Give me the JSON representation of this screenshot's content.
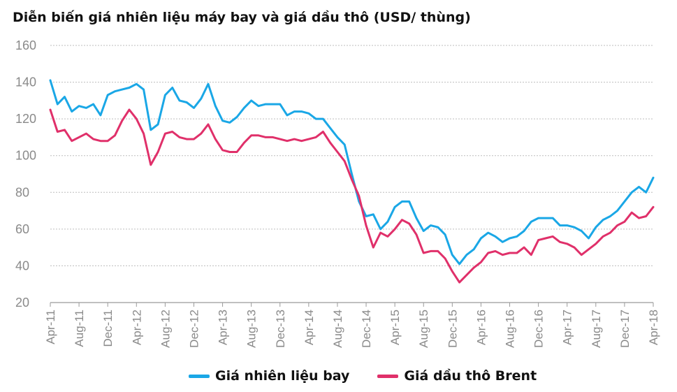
{
  "chart_data": {
    "type": "line",
    "title": "Diễn biến giá nhiên liệu máy bay và giá dầu thô (USD/ thùng)",
    "xlabel": "",
    "ylabel": "",
    "ylim": [
      20,
      160
    ],
    "yticks": [
      "20",
      "40",
      "60",
      "80",
      "100",
      "120",
      "140",
      "160"
    ],
    "xticks": [
      "Apr-11",
      "Aug-11",
      "Dec-11",
      "Apr-12",
      "Aug-12",
      "Dec-12",
      "Apr-13",
      "Aug-13",
      "Dec-13",
      "Apr-14",
      "Aug-14",
      "Dec-14",
      "Apr-15",
      "Aug-15",
      "Dec-15",
      "Apr-16",
      "Aug-16",
      "Dec-16",
      "Apr-17",
      "Aug-17",
      "Dec-17",
      "Apr-18"
    ],
    "grid": true,
    "legend_position": "bottom",
    "series": [
      {
        "name": "Giá nhiên liệu bay",
        "color": "#1aa7e6",
        "x": [
          "Apr-11",
          "May-11",
          "Jun-11",
          "Jul-11",
          "Aug-11",
          "Sep-11",
          "Oct-11",
          "Nov-11",
          "Dec-11",
          "Jan-12",
          "Feb-12",
          "Mar-12",
          "Apr-12",
          "May-12",
          "Jun-12",
          "Jul-12",
          "Aug-12",
          "Sep-12",
          "Oct-12",
          "Nov-12",
          "Dec-12",
          "Jan-13",
          "Feb-13",
          "Mar-13",
          "Apr-13",
          "May-13",
          "Jun-13",
          "Jul-13",
          "Aug-13",
          "Sep-13",
          "Oct-13",
          "Nov-13",
          "Dec-13",
          "Jan-14",
          "Feb-14",
          "Mar-14",
          "Apr-14",
          "May-14",
          "Jun-14",
          "Jul-14",
          "Aug-14",
          "Sep-14",
          "Oct-14",
          "Nov-14",
          "Dec-14",
          "Jan-15",
          "Feb-15",
          "Mar-15",
          "Apr-15",
          "May-15",
          "Jun-15",
          "Jul-15",
          "Aug-15",
          "Sep-15",
          "Oct-15",
          "Nov-15",
          "Dec-15",
          "Jan-16",
          "Feb-16",
          "Mar-16",
          "Apr-16",
          "May-16",
          "Jun-16",
          "Jul-16",
          "Aug-16",
          "Sep-16",
          "Oct-16",
          "Nov-16",
          "Dec-16",
          "Jan-17",
          "Feb-17",
          "Mar-17",
          "Apr-17",
          "May-17",
          "Jun-17",
          "Jul-17",
          "Aug-17",
          "Sep-17",
          "Oct-17",
          "Nov-17",
          "Dec-17",
          "Jan-18",
          "Feb-18",
          "Mar-18",
          "Apr-18"
        ],
        "values": [
          141,
          128,
          132,
          124,
          127,
          126,
          128,
          122,
          133,
          135,
          136,
          137,
          139,
          136,
          114,
          117,
          133,
          137,
          130,
          129,
          126,
          131,
          139,
          127,
          119,
          118,
          121,
          126,
          130,
          127,
          128,
          128,
          128,
          122,
          124,
          124,
          123,
          120,
          120,
          115,
          110,
          106,
          90,
          75,
          67,
          68,
          60,
          64,
          72,
          75,
          75,
          66,
          59,
          62,
          61,
          57,
          46,
          41,
          46,
          49,
          55,
          58,
          56,
          53,
          55,
          56,
          59,
          64,
          66,
          66,
          66,
          62,
          62,
          61,
          59,
          55,
          61,
          65,
          67,
          70,
          75,
          80,
          83,
          80,
          88
        ]
      },
      {
        "name": "Giá dầu thô Brent",
        "color": "#e0306a",
        "x": [
          "Apr-11",
          "May-11",
          "Jun-11",
          "Jul-11",
          "Aug-11",
          "Sep-11",
          "Oct-11",
          "Nov-11",
          "Dec-11",
          "Jan-12",
          "Feb-12",
          "Mar-12",
          "Apr-12",
          "May-12",
          "Jun-12",
          "Jul-12",
          "Aug-12",
          "Sep-12",
          "Oct-12",
          "Nov-12",
          "Dec-12",
          "Jan-13",
          "Feb-13",
          "Mar-13",
          "Apr-13",
          "May-13",
          "Jun-13",
          "Jul-13",
          "Aug-13",
          "Sep-13",
          "Oct-13",
          "Nov-13",
          "Dec-13",
          "Jan-14",
          "Feb-14",
          "Mar-14",
          "Apr-14",
          "May-14",
          "Jun-14",
          "Jul-14",
          "Aug-14",
          "Sep-14",
          "Oct-14",
          "Nov-14",
          "Dec-14",
          "Jan-15",
          "Feb-15",
          "Mar-15",
          "Apr-15",
          "May-15",
          "Jun-15",
          "Jul-15",
          "Aug-15",
          "Sep-15",
          "Oct-15",
          "Nov-15",
          "Dec-15",
          "Jan-16",
          "Feb-16",
          "Mar-16",
          "Apr-16",
          "May-16",
          "Jun-16",
          "Jul-16",
          "Aug-16",
          "Sep-16",
          "Oct-16",
          "Nov-16",
          "Dec-16",
          "Jan-17",
          "Feb-17",
          "Mar-17",
          "Apr-17",
          "May-17",
          "Jun-17",
          "Jul-17",
          "Aug-17",
          "Sep-17",
          "Oct-17",
          "Nov-17",
          "Dec-17",
          "Jan-18",
          "Feb-18",
          "Mar-18",
          "Apr-18"
        ],
        "values": [
          125,
          113,
          114,
          108,
          110,
          112,
          109,
          108,
          108,
          111,
          119,
          125,
          120,
          112,
          95,
          102,
          112,
          113,
          110,
          109,
          109,
          112,
          117,
          109,
          103,
          102,
          102,
          107,
          111,
          111,
          110,
          110,
          109,
          108,
          109,
          108,
          109,
          110,
          113,
          107,
          102,
          97,
          87,
          78,
          62,
          50,
          58,
          56,
          60,
          65,
          63,
          57,
          47,
          48,
          48,
          44,
          37,
          31,
          35,
          39,
          42,
          47,
          48,
          46,
          47,
          47,
          50,
          46,
          54,
          55,
          56,
          53,
          52,
          50,
          46,
          49,
          52,
          56,
          58,
          62,
          64,
          69,
          66,
          67,
          72
        ]
      }
    ]
  }
}
